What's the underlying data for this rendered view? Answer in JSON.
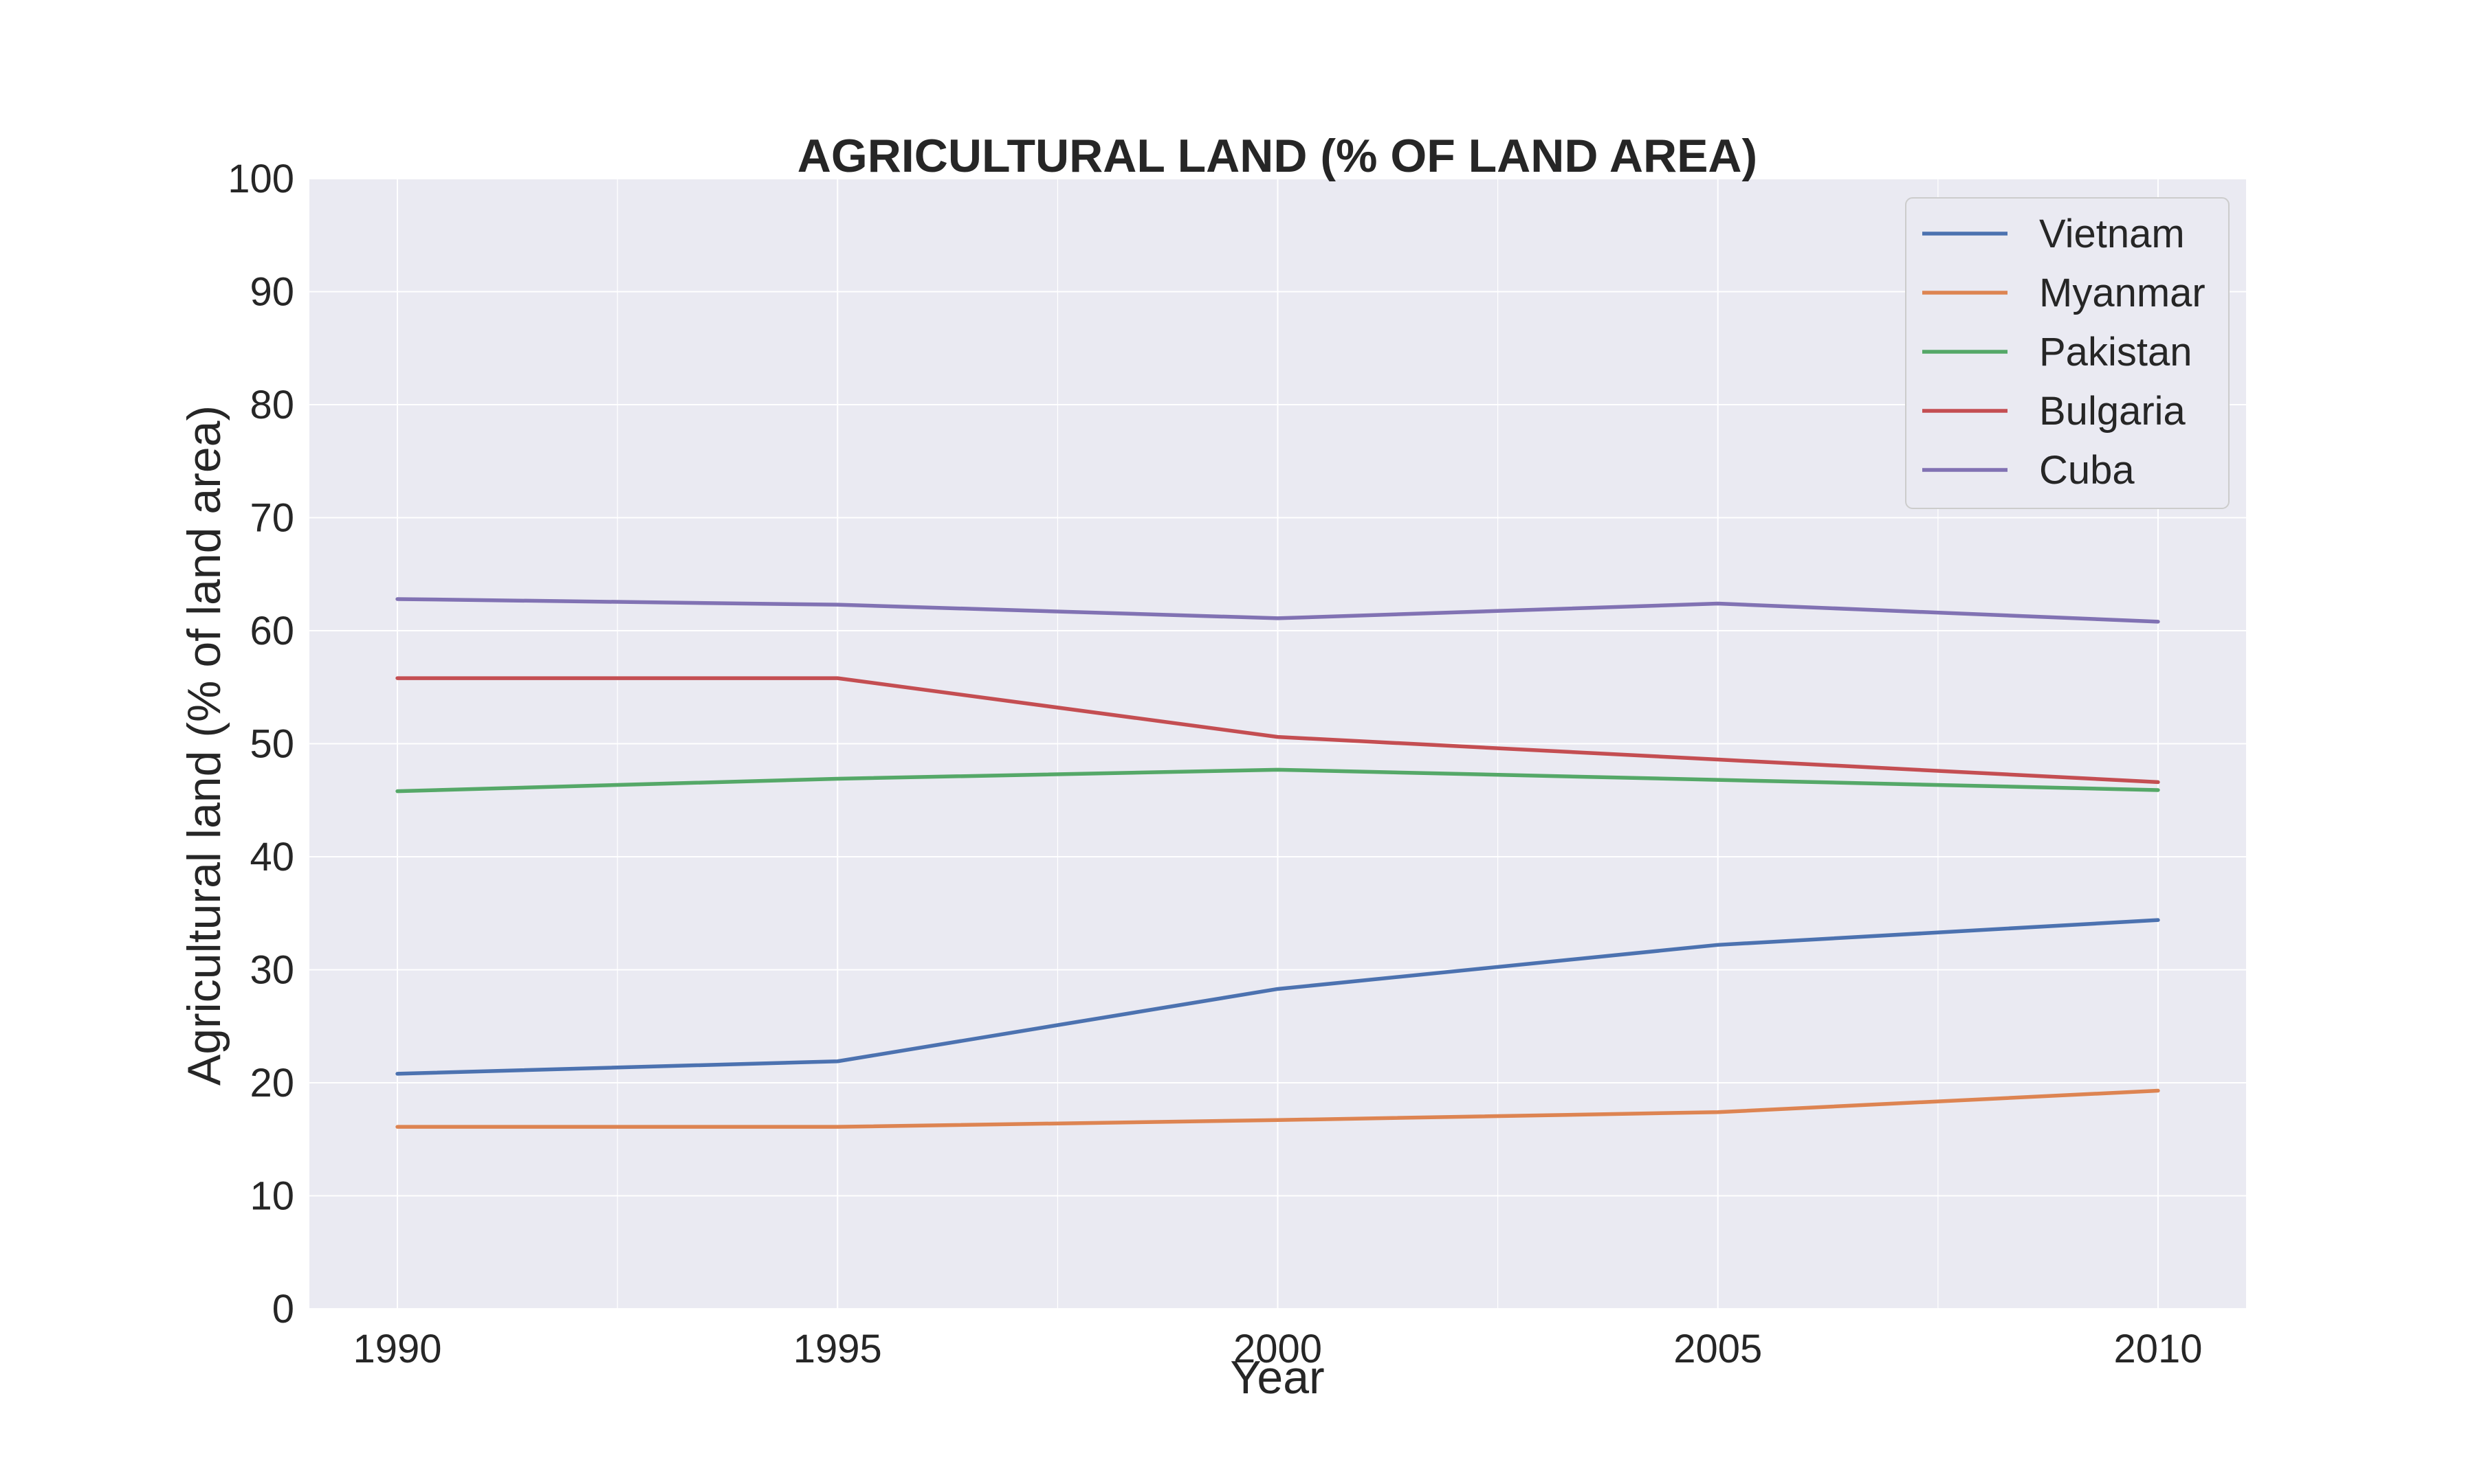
{
  "chart_data": {
    "type": "line",
    "title": "AGRICULTURAL LAND (% OF LAND AREA)",
    "xlabel": "Year",
    "ylabel": "Agricultural land (% of land area)",
    "x": [
      1990,
      1995,
      2000,
      2005,
      2010
    ],
    "xticks": [
      "1990",
      "1995",
      "2000",
      "2005",
      "2010"
    ],
    "xlim": [
      1989,
      2011
    ],
    "ylim": [
      0,
      100
    ],
    "yticks": [
      "0",
      "10",
      "20",
      "30",
      "40",
      "50",
      "60",
      "70",
      "80",
      "90",
      "100"
    ],
    "grid": true,
    "legend_position": "top-right",
    "background_color": "#eaeaf2",
    "series": [
      {
        "name": "Vietnam",
        "color": "#4c72b0",
        "values": [
          20.8,
          21.9,
          28.3,
          32.2,
          34.4
        ]
      },
      {
        "name": "Myanmar",
        "color": "#dd8452",
        "values": [
          16.1,
          16.1,
          16.7,
          17.4,
          19.3
        ]
      },
      {
        "name": "Pakistan",
        "color": "#55a868",
        "values": [
          45.8,
          46.9,
          47.7,
          46.8,
          45.9
        ]
      },
      {
        "name": "Bulgaria",
        "color": "#c44e52",
        "values": [
          55.8,
          55.8,
          50.6,
          48.6,
          46.6
        ]
      },
      {
        "name": "Cuba",
        "color": "#8172b3",
        "values": [
          62.8,
          62.3,
          61.1,
          62.4,
          60.8
        ]
      }
    ]
  }
}
